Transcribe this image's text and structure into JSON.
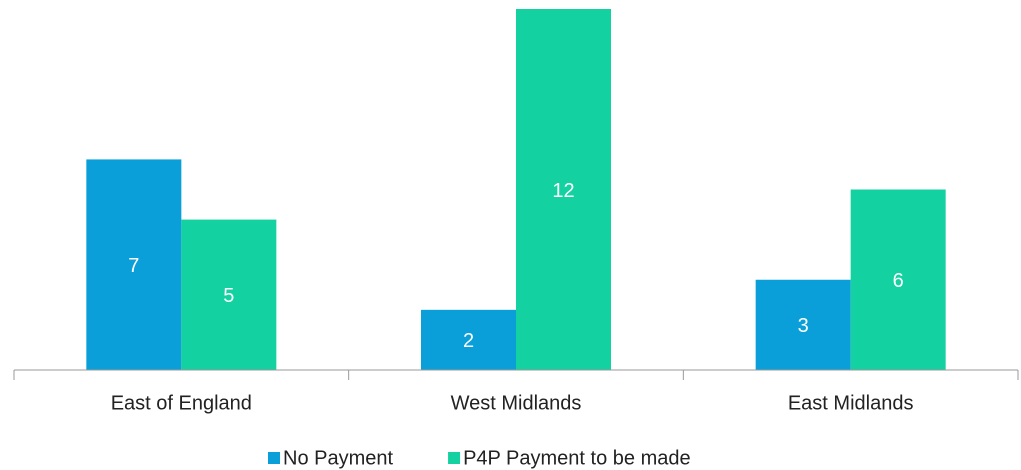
{
  "chart_data": {
    "type": "bar",
    "categories": [
      "East of England",
      "West Midlands",
      "East Midlands"
    ],
    "series": [
      {
        "name": "No Payment",
        "color": "#0a9fd8",
        "values": [
          7,
          2,
          3
        ]
      },
      {
        "name": "P4P Payment to be made",
        "color": "#13d1a0",
        "values": [
          5,
          12,
          6
        ]
      }
    ],
    "ylim": [
      0,
      12
    ],
    "legend": "bottom"
  }
}
